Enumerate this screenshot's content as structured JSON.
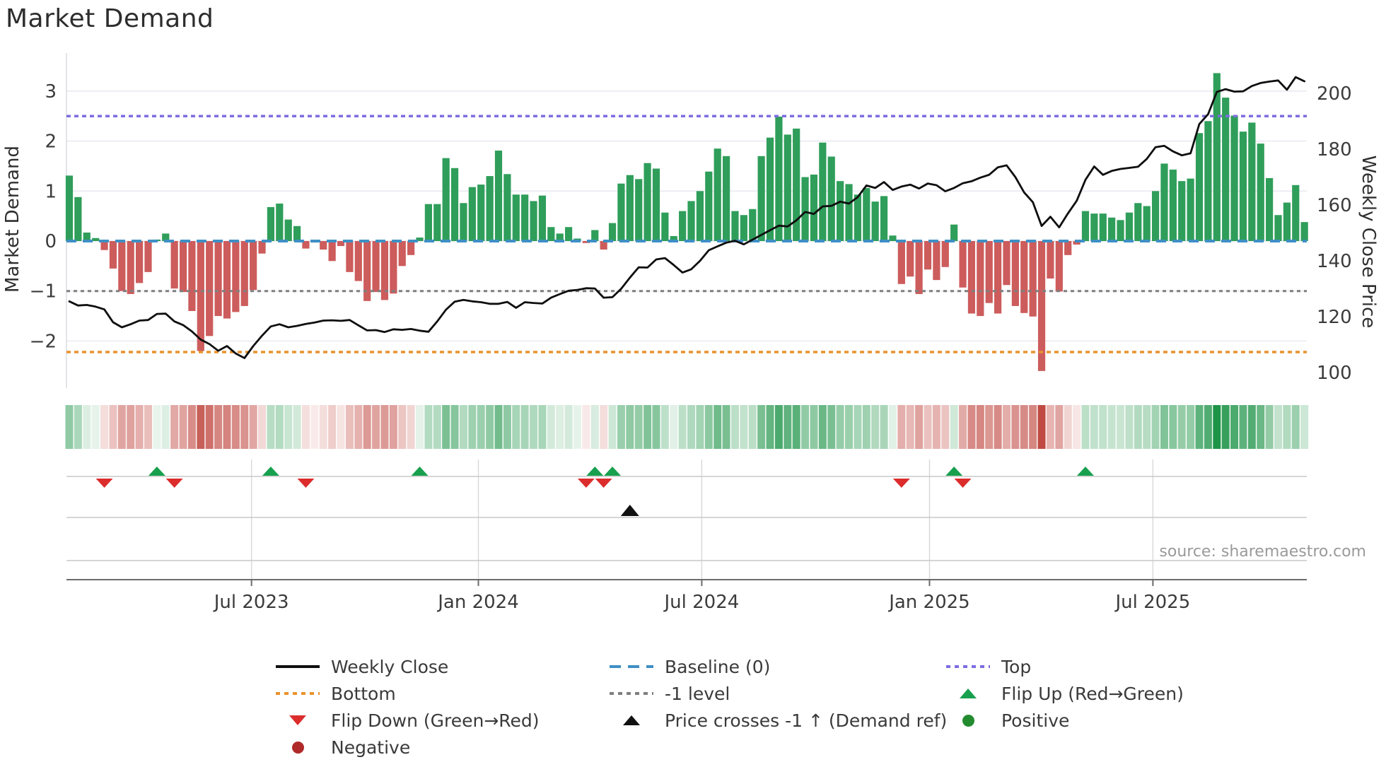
{
  "title": "Market Demand",
  "source": "source: sharemaestro.com",
  "axes": {
    "left_label": "Market Demand",
    "right_label": "Weekly Close Price",
    "left_ticks": [
      {
        "label": "3",
        "value": 3
      },
      {
        "label": "2",
        "value": 2
      },
      {
        "label": "1",
        "value": 1
      },
      {
        "label": "0",
        "value": 0
      },
      {
        "label": "−1",
        "value": -1
      },
      {
        "label": "−2",
        "value": -2
      }
    ],
    "right_ticks": [
      {
        "label": "200",
        "value": 200
      },
      {
        "label": "180",
        "value": 180
      },
      {
        "label": "160",
        "value": 160
      },
      {
        "label": "140",
        "value": 140
      },
      {
        "label": "120",
        "value": 120
      },
      {
        "label": "100",
        "value": 100
      }
    ],
    "x_ticks": [
      {
        "week": 20.8,
        "label": "Jul 2023"
      },
      {
        "week": 46.7,
        "label": "Jan 2024"
      },
      {
        "week": 72.2,
        "label": "Jul 2024"
      },
      {
        "week": 98.2,
        "label": "Jan 2025"
      },
      {
        "week": 123.7,
        "label": "Jul 2025"
      }
    ],
    "demand_ylim": [
      -2.95,
      3.75
    ],
    "price_ylim": [
      100,
      214
    ]
  },
  "ref_lines": [
    {
      "name": "top",
      "label": "Top",
      "value": 2.5,
      "color": "#7d6ee0",
      "dash": "6 5",
      "width": 3.5
    },
    {
      "name": "neg1",
      "label": "-1 level",
      "value": -1,
      "color": "#7f7f7f",
      "dash": "5 5",
      "width": 3
    },
    {
      "name": "bottom",
      "label": "Bottom",
      "value": -2.22,
      "color": "#e8932f",
      "dash": "6 5",
      "width": 3.5
    },
    {
      "name": "baseline",
      "label": "Baseline (0)",
      "value": 0,
      "color": "#3f8fc5",
      "dash": "14 9",
      "width": 4
    }
  ],
  "chart_data": {
    "type": "bar",
    "x_unit": "weekly",
    "x_tick_labels": [
      "Jul 2023",
      "Jan 2024",
      "Jul 2024",
      "Jan 2025",
      "Jul 2025"
    ],
    "title": "Market Demand",
    "grid": "horizontal-only",
    "series": [
      {
        "name": "Market Demand",
        "type": "bar",
        "axis": "left",
        "positive_color": "#2f9e5a",
        "negative_color": "#cd5c5c",
        "values": [
          1.31,
          0.88,
          0.17,
          0.06,
          -0.18,
          -0.55,
          -1.0,
          -1.06,
          -0.84,
          -0.62,
          0.03,
          0.15,
          -0.95,
          -1.02,
          -1.4,
          -2.2,
          -1.9,
          -1.5,
          -1.55,
          -1.42,
          -1.3,
          -0.98,
          -0.25,
          0.68,
          0.75,
          0.43,
          0.3,
          -0.15,
          -0.03,
          -0.17,
          -0.4,
          -0.1,
          -0.62,
          -0.8,
          -1.2,
          -1.02,
          -1.18,
          -1.05,
          -0.5,
          -0.28,
          0.07,
          0.74,
          0.74,
          1.66,
          1.46,
          0.76,
          1.08,
          1.13,
          1.3,
          1.81,
          1.34,
          0.93,
          0.93,
          0.8,
          0.91,
          0.28,
          0.15,
          0.28,
          0.05,
          -0.04,
          0.22,
          -0.17,
          0.36,
          1.15,
          1.32,
          1.24,
          1.56,
          1.45,
          0.57,
          0.1,
          0.6,
          0.8,
          1.0,
          1.39,
          1.85,
          1.7,
          0.6,
          0.52,
          0.64,
          1.7,
          2.07,
          2.49,
          2.13,
          2.25,
          1.28,
          1.33,
          1.97,
          1.69,
          1.2,
          1.14,
          0.93,
          1.06,
          0.79,
          0.9,
          0.11,
          -0.86,
          -0.71,
          -1.06,
          -0.57,
          -0.78,
          -0.52,
          0.33,
          -0.93,
          -1.45,
          -1.5,
          -1.24,
          -1.45,
          -0.88,
          -1.3,
          -1.44,
          -1.51,
          -2.6,
          -0.75,
          -1.01,
          -0.28,
          -0.07,
          0.6,
          0.55,
          0.55,
          0.47,
          0.42,
          0.57,
          0.76,
          0.7,
          1.0,
          1.55,
          1.43,
          1.2,
          1.25,
          2.16,
          2.4,
          3.36,
          2.87,
          2.51,
          2.19,
          2.37,
          1.95,
          1.26,
          0.52,
          0.77,
          1.12,
          0.38
        ]
      },
      {
        "name": "Weekly Close",
        "type": "line",
        "axis": "right",
        "color": "#0f0f0f",
        "values": [
          125.5,
          124.0,
          124.2,
          123.6,
          122.6,
          118.0,
          116.2,
          117.3,
          118.6,
          118.8,
          121.0,
          121.1,
          118.3,
          117.0,
          114.7,
          111.8,
          110.2,
          107.8,
          109.5,
          106.8,
          105.2,
          109.5,
          113.2,
          116.5,
          117.3,
          116.2,
          116.7,
          117.4,
          117.9,
          118.6,
          118.7,
          118.5,
          118.8,
          116.9,
          115.1,
          115.2,
          114.5,
          115.5,
          115.3,
          115.6,
          115.0,
          114.6,
          118.3,
          122.5,
          125.4,
          126.0,
          125.5,
          125.2,
          124.6,
          124.6,
          125.3,
          123.2,
          125.2,
          124.9,
          124.7,
          126.8,
          128.1,
          129.3,
          129.6,
          130.2,
          130.1,
          126.8,
          127.0,
          130.0,
          134.0,
          137.7,
          137.6,
          140.5,
          141.0,
          138.5,
          135.8,
          137.0,
          140.0,
          143.8,
          145.2,
          146.5,
          147.2,
          145.9,
          147.6,
          149.3,
          151.0,
          152.6,
          152.3,
          154.5,
          157.5,
          156.8,
          159.5,
          159.7,
          161.2,
          160.5,
          162.8,
          167.0,
          166.1,
          168.2,
          165.4,
          166.6,
          167.3,
          165.9,
          167.7,
          167.1,
          164.9,
          166.1,
          167.8,
          168.5,
          169.8,
          170.8,
          173.5,
          174.2,
          170.0,
          164.5,
          161.0,
          152.5,
          155.8,
          152.0,
          157.0,
          161.5,
          169.0,
          173.8,
          170.8,
          172.2,
          172.9,
          173.3,
          173.7,
          176.5,
          180.7,
          181.2,
          179.2,
          177.8,
          178.5,
          189.0,
          192.5,
          200.5,
          201.5,
          200.6,
          200.7,
          202.6,
          203.7,
          204.2,
          204.6,
          201.3,
          205.8,
          204.3
        ]
      }
    ]
  },
  "heatmap": {
    "description": "weekly strip colored by Market Demand value (green positive, red negative)",
    "derived_from": "Market Demand"
  },
  "markers": {
    "flip_up_weeks": [
      10,
      23,
      40,
      60,
      62,
      101,
      116
    ],
    "flip_down_weeks": [
      4,
      12,
      27,
      59,
      61,
      95,
      102
    ],
    "price_cross_weeks": [
      64
    ]
  },
  "colors": {
    "bar_positive": "#2f9e5a",
    "bar_negative": "#cd5c5c",
    "price_line": "#0f0f0f",
    "baseline": "#3f8fc5",
    "top_line": "#7d6ee0",
    "bottom_line": "#e8932f",
    "neg1_line": "#7f7f7f",
    "flip_up": "#18a04e",
    "flip_down": "#dc2c2c",
    "price_cross": "#111111",
    "positive_dot": "#238b2f",
    "negative_dot": "#b02a2a",
    "grid": "#e8e8f1"
  },
  "legend": {
    "columns": [
      [
        {
          "swatch": "line",
          "color": "#0f0f0f",
          "label": "Weekly Close"
        },
        {
          "swatch": "dotted",
          "color": "#e8932f",
          "label": "Bottom"
        },
        {
          "swatch": "triangle-down",
          "color": "#dc2c2c",
          "label": "Flip Down (Green→Red)"
        },
        {
          "swatch": "circle",
          "color": "#b02a2a",
          "label": "Negative"
        }
      ],
      [
        {
          "swatch": "dashed",
          "color": "#3f8fc5",
          "label": "Baseline (0)"
        },
        {
          "swatch": "dotted",
          "color": "#7f7f7f",
          "label": "-1 level"
        },
        {
          "swatch": "triangle-up",
          "color": "#111111",
          "label": "Price crosses -1 ↑ (Demand ref)"
        }
      ],
      [
        {
          "swatch": "dotted",
          "color": "#7d6ee0",
          "label": "Top"
        },
        {
          "swatch": "triangle-up",
          "color": "#18a04e",
          "label": "Flip Up (Red→Green)"
        },
        {
          "swatch": "circle",
          "color": "#238b2f",
          "label": "Positive"
        }
      ]
    ]
  }
}
